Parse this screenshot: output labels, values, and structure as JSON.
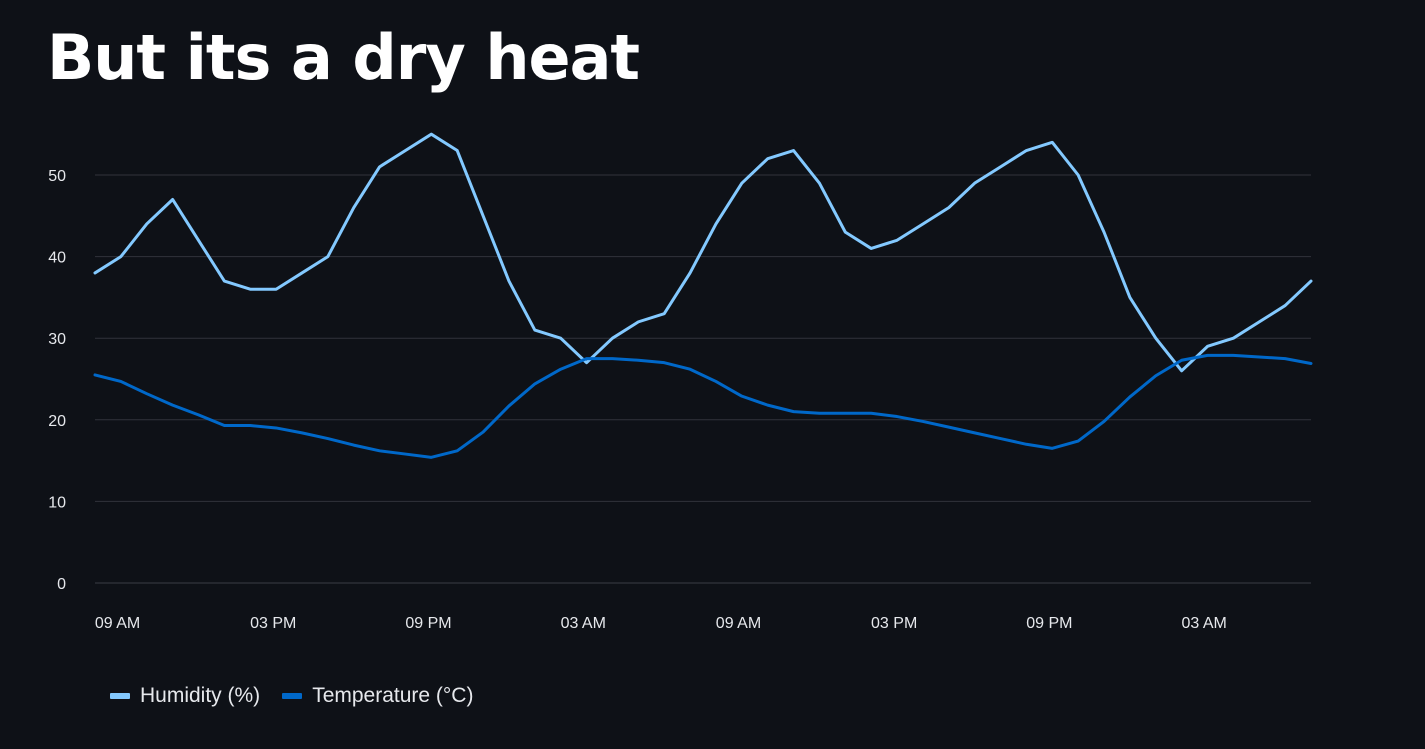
{
  "chart_data": {
    "type": "line",
    "title": "But its a dry heat",
    "xlabel": "",
    "ylabel": "",
    "ylim": [
      0,
      56
    ],
    "yticks": [
      0,
      10,
      20,
      30,
      40,
      50
    ],
    "xticks": [
      {
        "pos": 1,
        "label": "09 AM"
      },
      {
        "pos": 7,
        "label": "03 PM"
      },
      {
        "pos": 13,
        "label": "09 PM"
      },
      {
        "pos": 19,
        "label": "03 AM"
      },
      {
        "pos": 25,
        "label": "09 AM"
      },
      {
        "pos": 31,
        "label": "03 PM"
      },
      {
        "pos": 37,
        "label": "09 PM"
      },
      {
        "pos": 43,
        "label": "03 AM"
      }
    ],
    "grid": true,
    "legend_position": "bottom-left",
    "series": [
      {
        "name": "Humidity (%)",
        "color": "#83c9ff",
        "values": [
          38,
          40,
          44,
          47,
          42,
          37,
          36,
          36,
          38,
          40,
          46,
          51,
          53,
          55,
          53,
          45,
          37,
          31,
          30,
          27,
          30,
          32,
          33,
          38,
          44,
          49,
          52,
          53,
          49,
          43,
          41,
          42,
          44,
          46,
          49,
          51,
          53,
          54,
          50,
          43,
          35,
          30,
          26,
          29,
          30,
          32,
          34,
          37
        ]
      },
      {
        "name": "Temperature (°C)",
        "color": "#0068c9",
        "values": [
          25.5,
          24.7,
          23.2,
          21.8,
          20.6,
          19.3,
          19.3,
          19.0,
          18.4,
          17.7,
          16.9,
          16.2,
          15.8,
          15.4,
          16.2,
          18.5,
          21.7,
          24.4,
          26.2,
          27.5,
          27.5,
          27.3,
          27.0,
          26.2,
          24.7,
          22.9,
          21.8,
          21.0,
          20.8,
          20.8,
          20.8,
          20.4,
          19.8,
          19.1,
          18.4,
          17.7,
          17.0,
          16.5,
          17.4,
          19.8,
          22.8,
          25.4,
          27.3,
          27.9,
          27.9,
          27.7,
          27.5,
          26.9
        ]
      }
    ]
  }
}
